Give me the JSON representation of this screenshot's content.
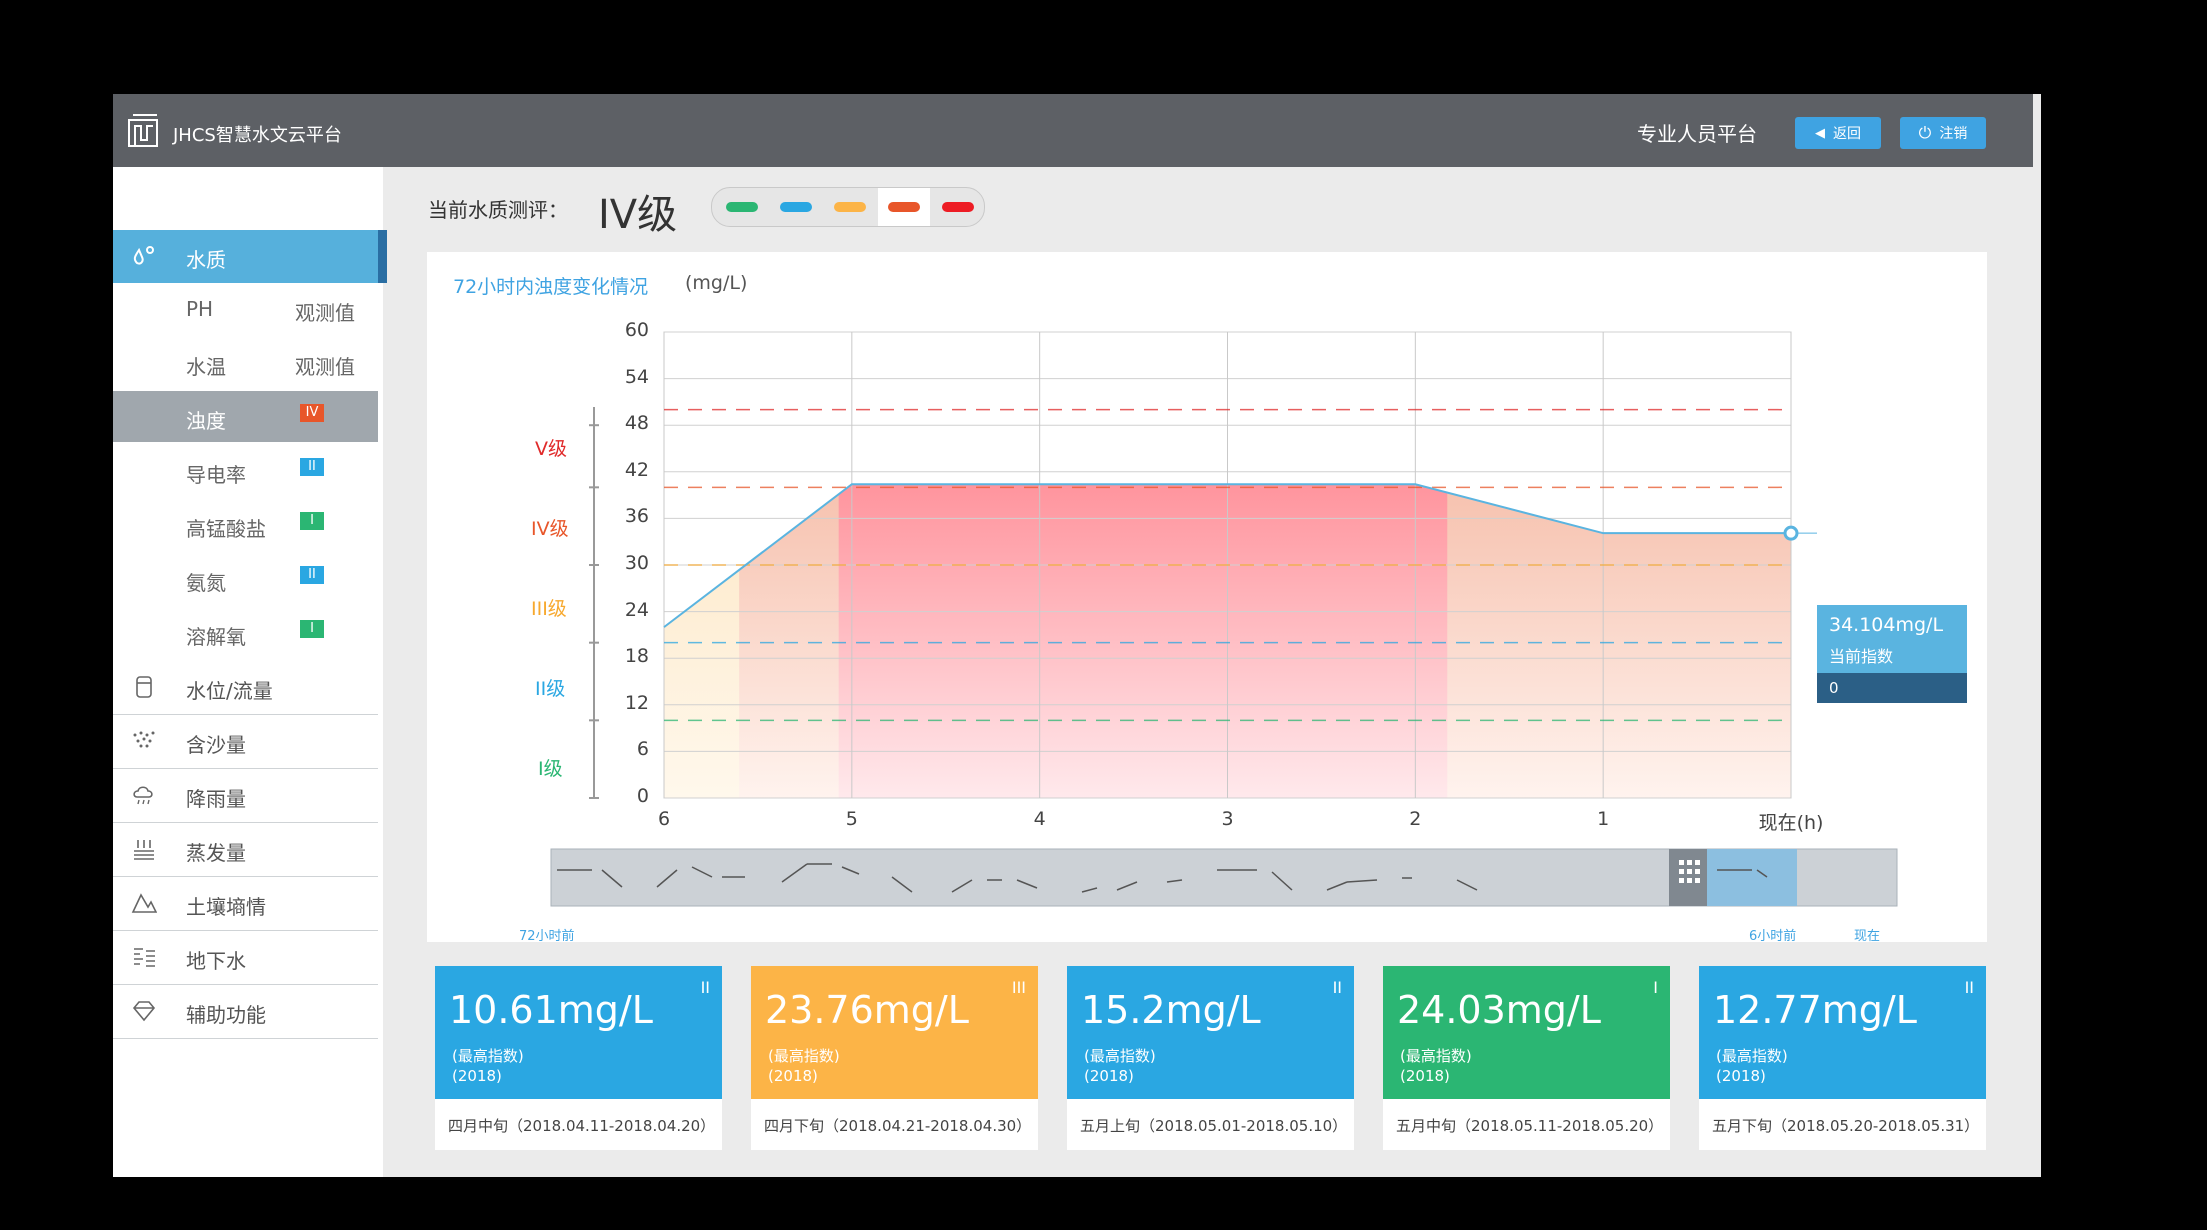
{
  "header": {
    "app_title": "JHCS智慧水文云平台",
    "platform": "专业人员平台",
    "back_label": "返回",
    "logout_label": "注销"
  },
  "sidebar": {
    "main_items": [
      {
        "label": "水质",
        "icon": "water-drops-icon",
        "active": true
      },
      {
        "label": "水位/流量",
        "icon": "water-level-icon"
      },
      {
        "label": "含沙量",
        "icon": "sediment-icon"
      },
      {
        "label": "降雨量",
        "icon": "rain-cloud-icon"
      },
      {
        "label": "蒸发量",
        "icon": "evaporation-icon"
      },
      {
        "label": "土壤墒情",
        "icon": "soil-icon"
      },
      {
        "label": "地下水",
        "icon": "groundwater-icon"
      },
      {
        "label": "辅助功能",
        "icon": "diamond-icon"
      }
    ],
    "sub_items": [
      {
        "label": "PH",
        "value": "观测值"
      },
      {
        "label": "水温",
        "value": "观测值"
      },
      {
        "label": "浊度",
        "badge": "IV",
        "badge_color": "#e8562a",
        "selected": true
      },
      {
        "label": "导电率",
        "badge": "II",
        "badge_color": "#2aa7e2"
      },
      {
        "label": "高锰酸盐",
        "badge": "I",
        "badge_color": "#2bb673"
      },
      {
        "label": "氨氮",
        "badge": "II",
        "badge_color": "#2aa7e2"
      },
      {
        "label": "溶解氧",
        "badge": "I",
        "badge_color": "#2bb673"
      }
    ]
  },
  "evaluation": {
    "label": "当前水质测评：",
    "grade": "IV级",
    "level_colors": [
      "#2bb673",
      "#2aa7e2",
      "#fcb447",
      "#e8562a",
      "#ed1c24"
    ],
    "selected_index": 3
  },
  "chart_data": {
    "type": "area",
    "title": "72小时内浊度变化情况",
    "unit": "(mg/L)",
    "x_ticks": [
      "6",
      "5",
      "4",
      "3",
      "2",
      "1",
      "现在(h)"
    ],
    "y_ticks": [
      "0",
      "6",
      "12",
      "18",
      "24",
      "30",
      "36",
      "42",
      "48",
      "54",
      "60"
    ],
    "ylim": [
      0,
      60
    ],
    "xlim": [
      6,
      0
    ],
    "series": [
      {
        "x": [
          6,
          5,
          4,
          3,
          2,
          1,
          0
        ],
        "values": [
          22,
          40.4,
          40.4,
          40.4,
          40.4,
          34.1,
          34.1
        ]
      }
    ],
    "thresholds": [
      {
        "label": "V级",
        "value": 50,
        "color": "#e02a2a"
      },
      {
        "label": "IV级",
        "value": 40,
        "color": "#e8562a"
      },
      {
        "label": "III级",
        "value": 30,
        "color": "#f7a92f"
      },
      {
        "label": "II级",
        "value": 20,
        "color": "#2aa7e2"
      },
      {
        "label": "I级",
        "value": 10,
        "color": "#2bb673"
      }
    ],
    "tooltip": {
      "value": "34.104mg/L",
      "label": "当前指数",
      "index": "0"
    },
    "zoom_labels": {
      "start": "72小时前",
      "mid": "6小时前",
      "end": "现在"
    }
  },
  "cards": [
    {
      "value": "10.61mg/L",
      "level": "II",
      "sub1": "(最高指数)",
      "sub2": "(2018)",
      "period": "四月中旬（2018.04.11-2018.04.20）",
      "color": "#2aa7e2"
    },
    {
      "value": "23.76mg/L",
      "level": "III",
      "sub1": "(最高指数)",
      "sub2": "(2018)",
      "period": "四月下旬（2018.04.21-2018.04.30）",
      "color": "#fcb447"
    },
    {
      "value": "15.2mg/L",
      "level": "II",
      "sub1": "(最高指数)",
      "sub2": "(2018)",
      "period": "五月上旬（2018.05.01-2018.05.10）",
      "color": "#2aa7e2"
    },
    {
      "value": "24.03mg/L",
      "level": "I",
      "sub1": "(最高指数)",
      "sub2": "(2018)",
      "period": "五月中旬（2018.05.11-2018.05.20）",
      "color": "#2bb673"
    },
    {
      "value": "12.77mg/L",
      "level": "II",
      "sub1": "(最高指数)",
      "sub2": "(2018)",
      "period": "五月下旬（2018.05.20-2018.05.31）",
      "color": "#2aa7e2"
    }
  ]
}
